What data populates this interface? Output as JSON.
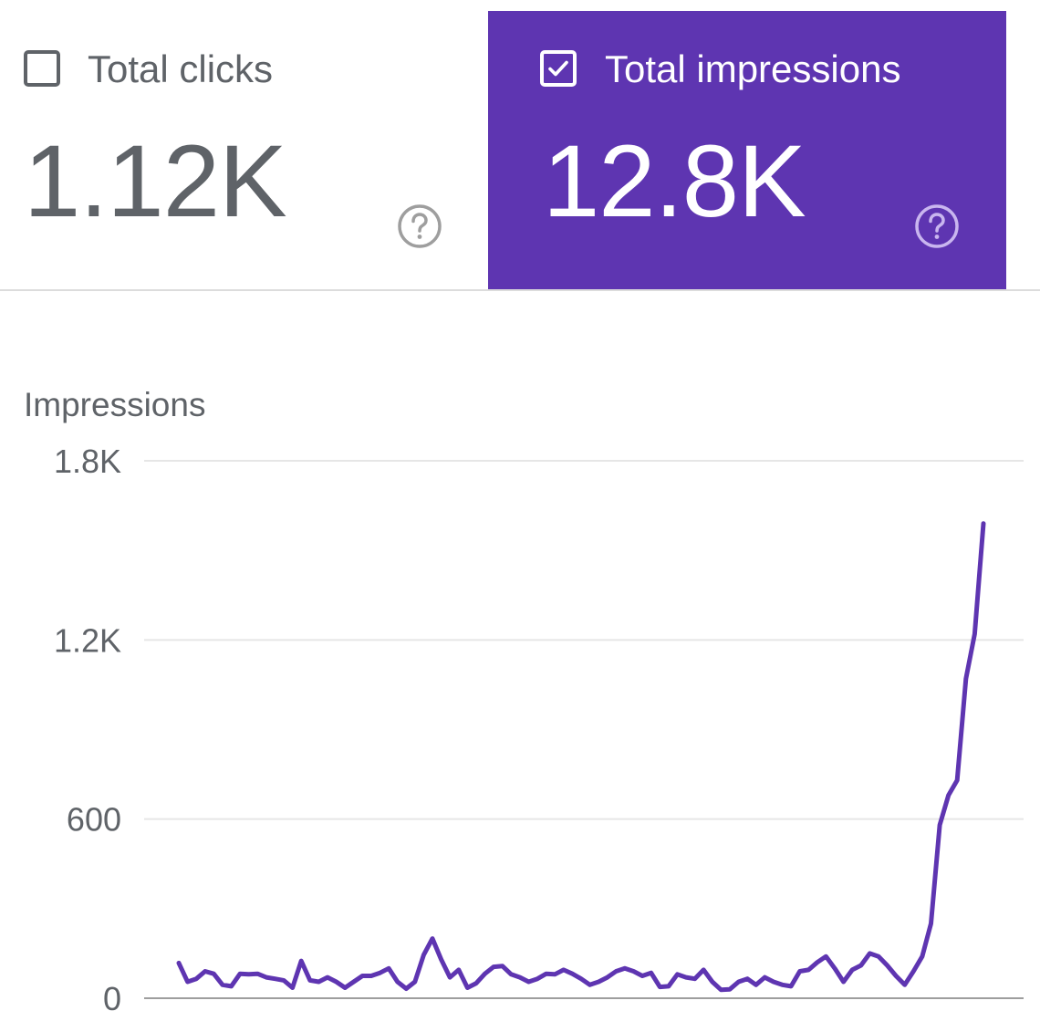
{
  "cards": {
    "clicks": {
      "label": "Total clicks",
      "value": "1.12K",
      "checked": false,
      "help_icon": "help-circle-icon"
    },
    "impressions": {
      "label": "Total impressions",
      "value": "12.8K",
      "checked": true,
      "help_icon": "help-circle-icon",
      "color": "#5e35b1"
    }
  },
  "chart_data": {
    "type": "line",
    "title": "Impressions",
    "ylabel": "",
    "xlabel": "",
    "ylim": [
      0,
      1800
    ],
    "yticks": [
      0,
      600,
      1200,
      1800
    ],
    "ytick_labels": [
      "0",
      "600",
      "1.2K",
      "1.8K"
    ],
    "grid": true,
    "line_color": "#5e35b1",
    "series": [
      {
        "values": [
          118,
          55,
          65,
          90,
          82,
          45,
          40,
          82,
          80,
          82,
          70,
          65,
          60,
          35,
          125,
          60,
          55,
          70,
          55,
          35,
          55,
          75,
          75,
          85,
          100,
          55,
          32,
          55,
          145,
          200,
          130,
          70,
          95,
          35,
          50,
          82,
          105,
          108,
          80,
          70,
          55,
          65,
          82,
          80,
          95,
          82,
          65,
          45,
          55,
          70,
          90,
          100,
          90,
          75,
          85,
          38,
          40,
          80,
          70,
          65,
          95,
          55,
          28,
          30,
          55,
          65,
          45,
          70,
          55,
          45,
          40,
          90,
          95,
          120,
          140,
          100,
          55,
          95,
          110,
          150,
          140,
          110,
          75,
          45,
          90,
          140,
          250,
          580,
          680,
          730,
          1070,
          1220,
          1590
        ]
      }
    ]
  }
}
